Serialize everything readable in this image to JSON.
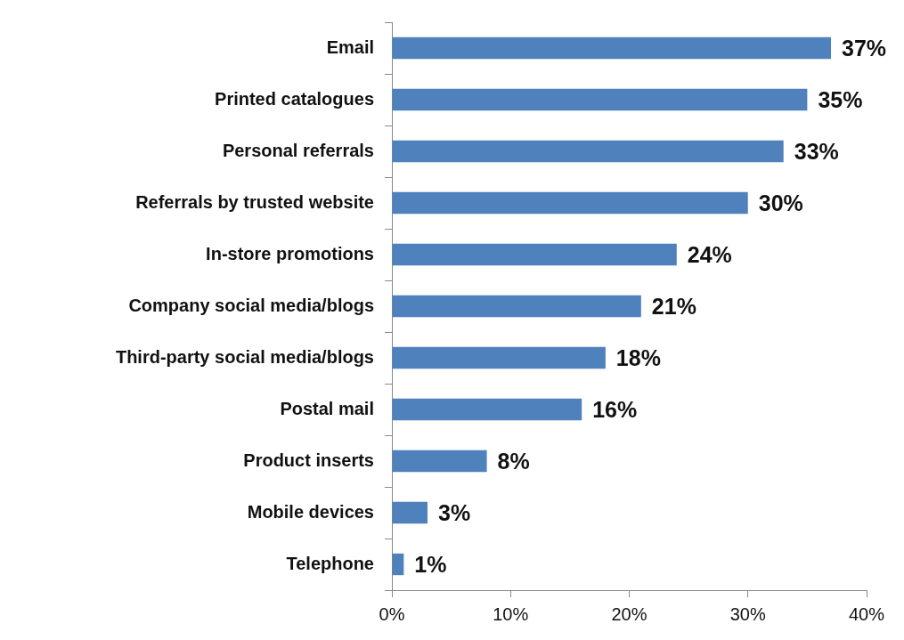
{
  "chart_data": {
    "type": "bar",
    "orientation": "horizontal",
    "categories": [
      "Email",
      "Printed catalogues",
      "Personal referrals",
      "Referrals by trusted website",
      "In-store promotions",
      "Company social media/blogs",
      "Third-party social media/blogs",
      "Postal mail",
      "Product inserts",
      "Mobile devices",
      "Telephone"
    ],
    "values": [
      37,
      35,
      33,
      30,
      24,
      21,
      18,
      16,
      8,
      3,
      1
    ],
    "value_labels": [
      "37%",
      "35%",
      "33%",
      "30%",
      "24%",
      "21%",
      "18%",
      "16%",
      "8%",
      "3%",
      "1%"
    ],
    "color": "#4f81bd",
    "xlim": [
      0,
      40
    ],
    "xticks": [
      {
        "value": 0,
        "label": "0%"
      },
      {
        "value": 10,
        "label": "10%"
      },
      {
        "value": 20,
        "label": "20%"
      },
      {
        "value": 30,
        "label": "30%"
      },
      {
        "value": 40,
        "label": "40%"
      }
    ],
    "grid": false,
    "legend": false
  }
}
